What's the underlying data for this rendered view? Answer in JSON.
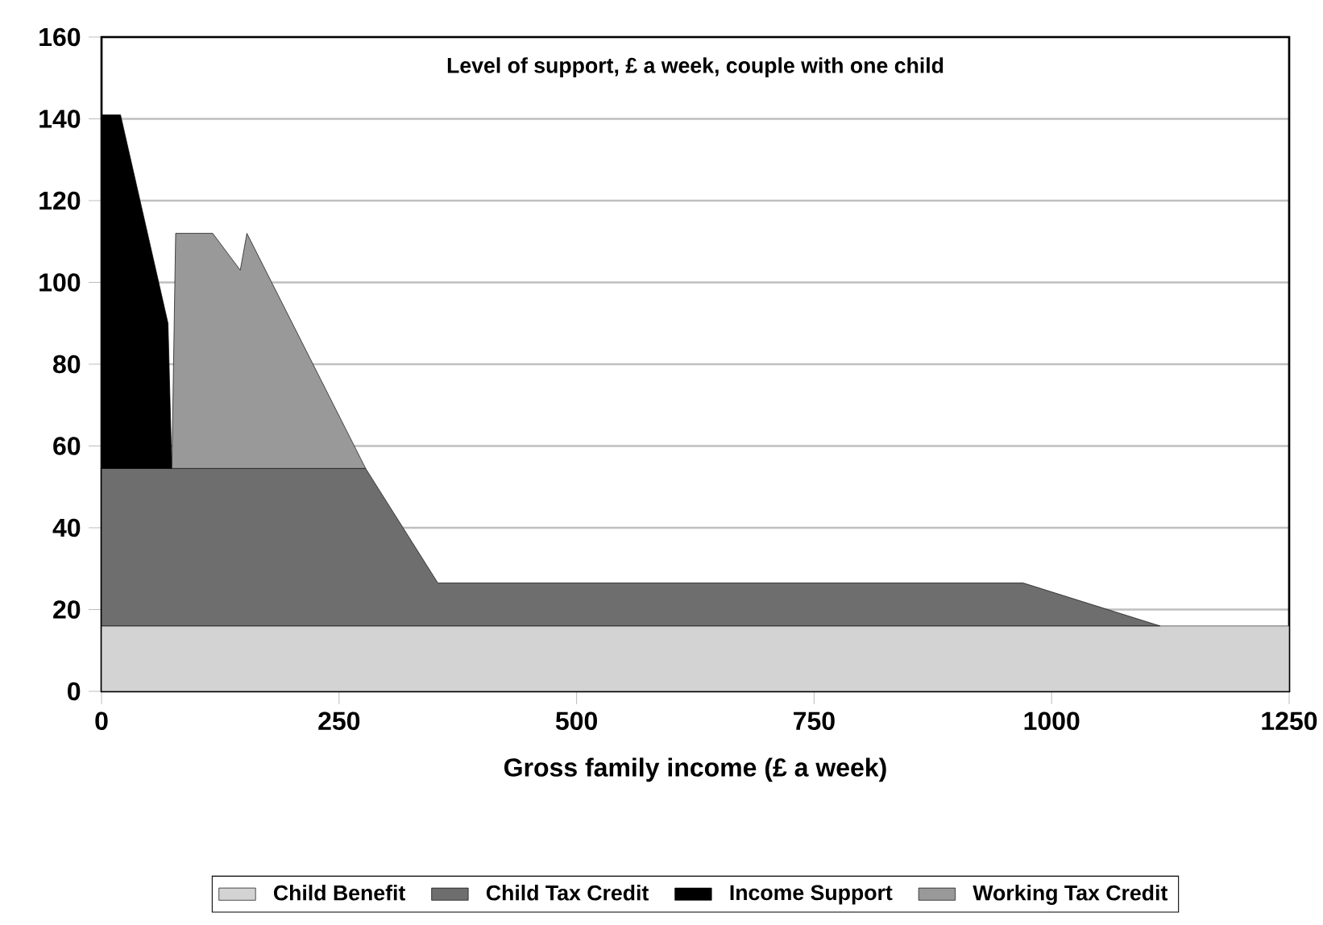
{
  "chart_data": {
    "type": "area",
    "stacked": true,
    "title": "Level of support, £ a week, couple with one child",
    "xlabel": "Gross family income (£ a week)",
    "x": [
      0,
      20,
      70,
      74,
      78,
      117,
      146,
      153,
      278,
      354,
      970,
      1114,
      1250
    ],
    "series": [
      {
        "name": "Child Benefit",
        "color": "#d3d3d3",
        "values": [
          16,
          16,
          16,
          16,
          16,
          16,
          16,
          16,
          16,
          16,
          16,
          16,
          16
        ]
      },
      {
        "name": "Child Tax Credit",
        "color": "#6e6e6e",
        "values": [
          38.5,
          38.5,
          38.5,
          38.5,
          38.5,
          38.5,
          38.5,
          38.5,
          38.5,
          10.5,
          10.5,
          0,
          null
        ]
      },
      {
        "name": "Income Support",
        "color": "#000000",
        "values": [
          86.5,
          86.5,
          35.5,
          0,
          null,
          null,
          null,
          null,
          null,
          null,
          null,
          null,
          null
        ]
      },
      {
        "name": "Working Tax Credit",
        "color": "#999999",
        "values": [
          null,
          null,
          null,
          0,
          57.5,
          57.5,
          48.5,
          57.5,
          0,
          null,
          null,
          null,
          null
        ]
      }
    ],
    "xlim": [
      0,
      1250
    ],
    "ylim": [
      0,
      160
    ],
    "xticks": [
      0,
      250,
      500,
      750,
      1000,
      1250
    ],
    "yticks": [
      0,
      20,
      40,
      60,
      80,
      100,
      120,
      140,
      160
    ],
    "grid": "y",
    "legend": "bottom"
  }
}
